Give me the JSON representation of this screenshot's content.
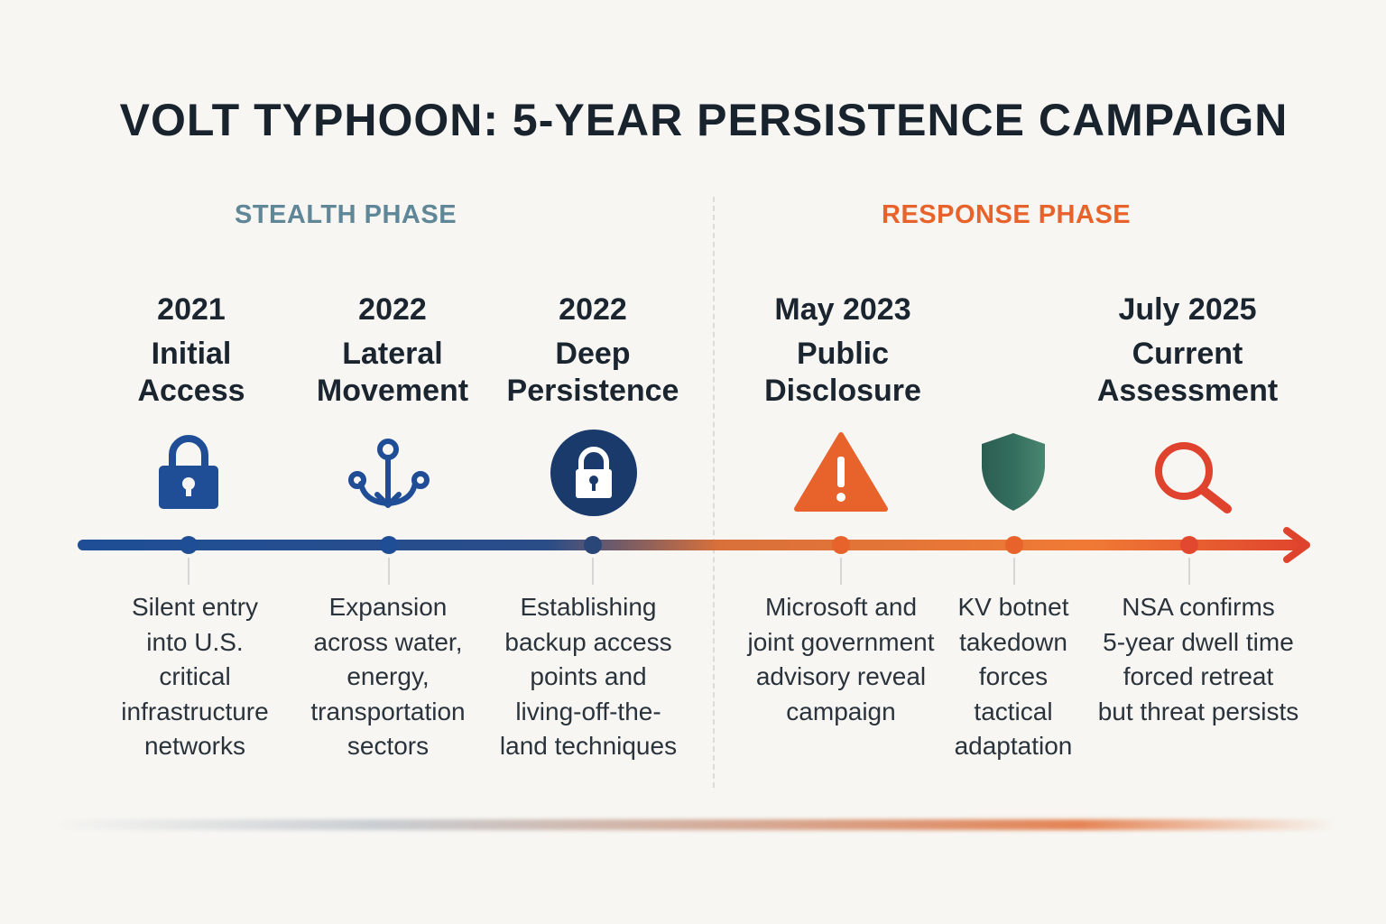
{
  "title": "VOLT TYPHOON: 5-YEAR PERSISTENCE CAMPAIGN",
  "phases": {
    "stealth": "STEALTH PHASE",
    "response": "RESPONSE PHASE"
  },
  "colors": {
    "stealth_blue": "#1f4e96",
    "navy": "#1a3a6c",
    "accent_orange": "#e8632b",
    "shield_green": "#2f6a5a",
    "red": "#e0432d",
    "stealth_label": "#5f8797"
  },
  "events": [
    {
      "year": "2021",
      "label_line1": "Initial",
      "label_line2": "Access",
      "icon": "padlock-icon",
      "desc": [
        "Silent entry",
        "into U.S.",
        "critical",
        "infrastructure",
        "networks"
      ]
    },
    {
      "year": "2022",
      "label_line1": "Lateral",
      "label_line2": "Movement",
      "icon": "anchor-network-icon",
      "desc": [
        "Expansion",
        "across water,",
        "energy,",
        "transportation",
        "sectors"
      ]
    },
    {
      "year": "2022",
      "label_line1": "Deep",
      "label_line2": "Persistence",
      "icon": "circle-lock-icon",
      "desc": [
        "Establishing",
        "backup access",
        "points and",
        "living-off-the-",
        "land techniques"
      ]
    },
    {
      "year": "May 2023",
      "label_line1": "Public",
      "label_line2": "Disclosure",
      "icon": "warning-icon",
      "desc": [
        "Microsoft and",
        "joint government",
        "advisory reveal",
        "campaign"
      ]
    },
    {
      "year": "",
      "label_line1": "",
      "label_line2": "",
      "icon": "shield-icon",
      "desc": [
        "KV botnet",
        "takedown",
        "forces",
        "tactical",
        "adaptation"
      ]
    },
    {
      "year": "July 2025",
      "label_line1": "Current",
      "label_line2": "Assessment",
      "icon": "magnifier-icon",
      "desc": [
        "NSA confirms",
        "5-year dwell time",
        "forced retreat",
        "but threat persists"
      ]
    }
  ]
}
